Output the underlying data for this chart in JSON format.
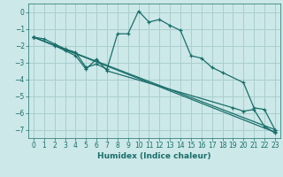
{
  "xlabel": "Humidex (Indice chaleur)",
  "bg_color": "#cce8e8",
  "line_color": "#1a6e6a",
  "grid_color": "#aacece",
  "xlim": [
    -0.5,
    23.5
  ],
  "ylim": [
    -7.5,
    0.5
  ],
  "yticks": [
    0,
    -1,
    -2,
    -3,
    -4,
    -5,
    -6,
    -7
  ],
  "xticks": [
    0,
    1,
    2,
    3,
    4,
    5,
    6,
    7,
    8,
    9,
    10,
    11,
    12,
    13,
    14,
    15,
    16,
    17,
    18,
    19,
    20,
    21,
    22,
    23
  ],
  "lines": [
    {
      "x": [
        0,
        1,
        2,
        3,
        4,
        5,
        6,
        7,
        8,
        9,
        10,
        11,
        12,
        13,
        14,
        15,
        16,
        17,
        18,
        20,
        21,
        22,
        23
      ],
      "y": [
        -1.5,
        -1.6,
        -1.9,
        -2.2,
        -2.4,
        -3.3,
        -3.1,
        -3.4,
        -1.3,
        -1.3,
        0.05,
        -0.6,
        -0.45,
        -0.8,
        -1.1,
        -2.6,
        -2.75,
        -3.3,
        -3.6,
        -4.2,
        -5.7,
        -5.8,
        -7.0
      ]
    },
    {
      "x": [
        0,
        2,
        3,
        4,
        5,
        6,
        7,
        19,
        20,
        21,
        22,
        23
      ],
      "y": [
        -1.5,
        -2.0,
        -2.3,
        -2.6,
        -3.4,
        -2.8,
        -3.5,
        -5.7,
        -5.9,
        -5.8,
        -6.8,
        -7.2
      ]
    },
    {
      "x": [
        0,
        23
      ],
      "y": [
        -1.5,
        -7.0
      ]
    },
    {
      "x": [
        0,
        23
      ],
      "y": [
        -1.5,
        -7.15
      ]
    }
  ]
}
